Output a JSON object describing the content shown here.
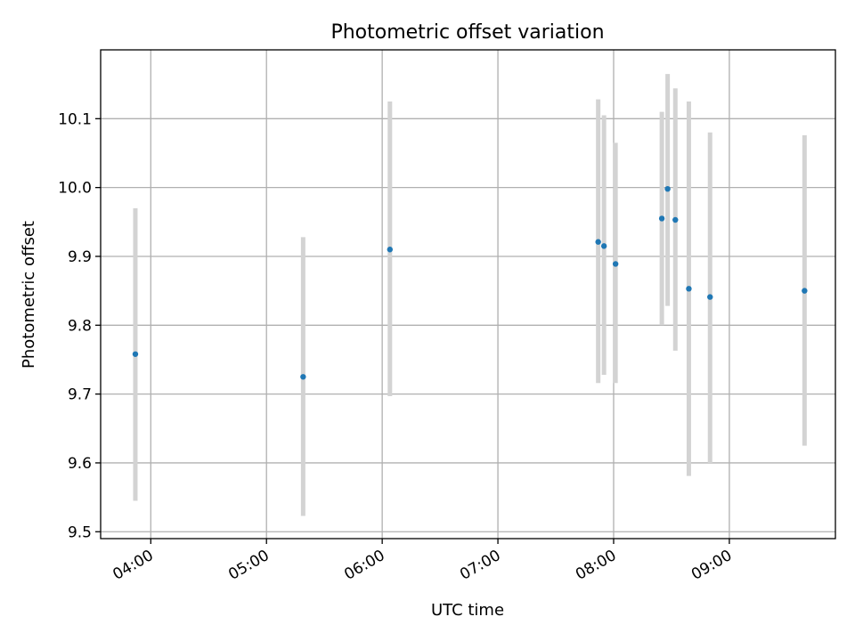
{
  "chart_data": {
    "type": "scatter",
    "title": "Photometric offset variation",
    "xlabel": "UTC time",
    "ylabel": "Photometric offset",
    "x_tick_labels": [
      "04:00",
      "05:00",
      "06:00",
      "07:00",
      "08:00",
      "09:00"
    ],
    "y_tick_labels": [
      "9.5",
      "9.6",
      "9.7",
      "9.8",
      "9.9",
      "10.0",
      "10.1"
    ],
    "y_ticks": [
      9.5,
      9.6,
      9.7,
      9.8,
      9.9,
      10.0,
      10.1
    ],
    "xlim": [
      "03:34",
      "09:55"
    ],
    "ylim": [
      9.49,
      10.2
    ],
    "grid": true,
    "marker_color": "#1f77b4",
    "errorbar_color": "#d3d3d3",
    "points": [
      {
        "x": "03:52",
        "y": 9.758,
        "ylow": 9.545,
        "yhigh": 9.97
      },
      {
        "x": "05:19",
        "y": 9.725,
        "ylow": 9.523,
        "yhigh": 9.928
      },
      {
        "x": "06:04",
        "y": 9.91,
        "ylow": 9.697,
        "yhigh": 10.125
      },
      {
        "x": "07:52",
        "y": 9.921,
        "ylow": 9.716,
        "yhigh": 10.128
      },
      {
        "x": "07:55",
        "y": 9.915,
        "ylow": 9.728,
        "yhigh": 10.105
      },
      {
        "x": "08:01",
        "y": 9.889,
        "ylow": 9.716,
        "yhigh": 10.065
      },
      {
        "x": "08:25",
        "y": 9.955,
        "ylow": 9.8,
        "yhigh": 10.11
      },
      {
        "x": "08:28",
        "y": 9.998,
        "ylow": 9.828,
        "yhigh": 10.165
      },
      {
        "x": "08:32",
        "y": 9.953,
        "ylow": 9.763,
        "yhigh": 10.144
      },
      {
        "x": "08:39",
        "y": 9.853,
        "ylow": 9.581,
        "yhigh": 10.125
      },
      {
        "x": "08:50",
        "y": 9.841,
        "ylow": 9.6,
        "yhigh": 10.08
      },
      {
        "x": "09:39",
        "y": 9.85,
        "ylow": 9.625,
        "yhigh": 10.076
      }
    ]
  }
}
